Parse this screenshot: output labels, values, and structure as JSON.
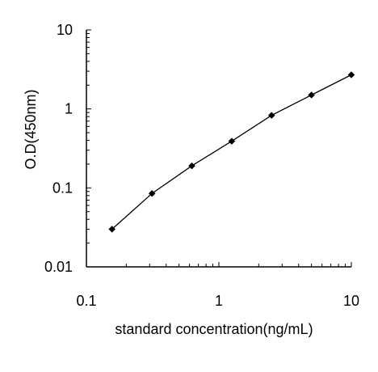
{
  "chart_data": {
    "type": "line",
    "title": "",
    "xlabel": "standard concentration(ng/mL)",
    "ylabel": "O.D(450nm)",
    "xscale": "log",
    "yscale": "log",
    "xlim": [
      0.1,
      10
    ],
    "ylim": [
      0.01,
      10
    ],
    "grid": false,
    "legend": "none",
    "x_ticks": [
      "0.1",
      "1",
      "10"
    ],
    "y_ticks": [
      "0.01",
      "0.1",
      "1",
      "10"
    ],
    "series": [
      {
        "x": [
          0.156,
          0.3125,
          0.625,
          1.25,
          2.5,
          5,
          10
        ],
        "values": [
          0.03,
          0.085,
          0.19,
          0.39,
          0.83,
          1.5,
          2.7
        ],
        "color": "#000000",
        "marker": "diamond"
      }
    ]
  }
}
